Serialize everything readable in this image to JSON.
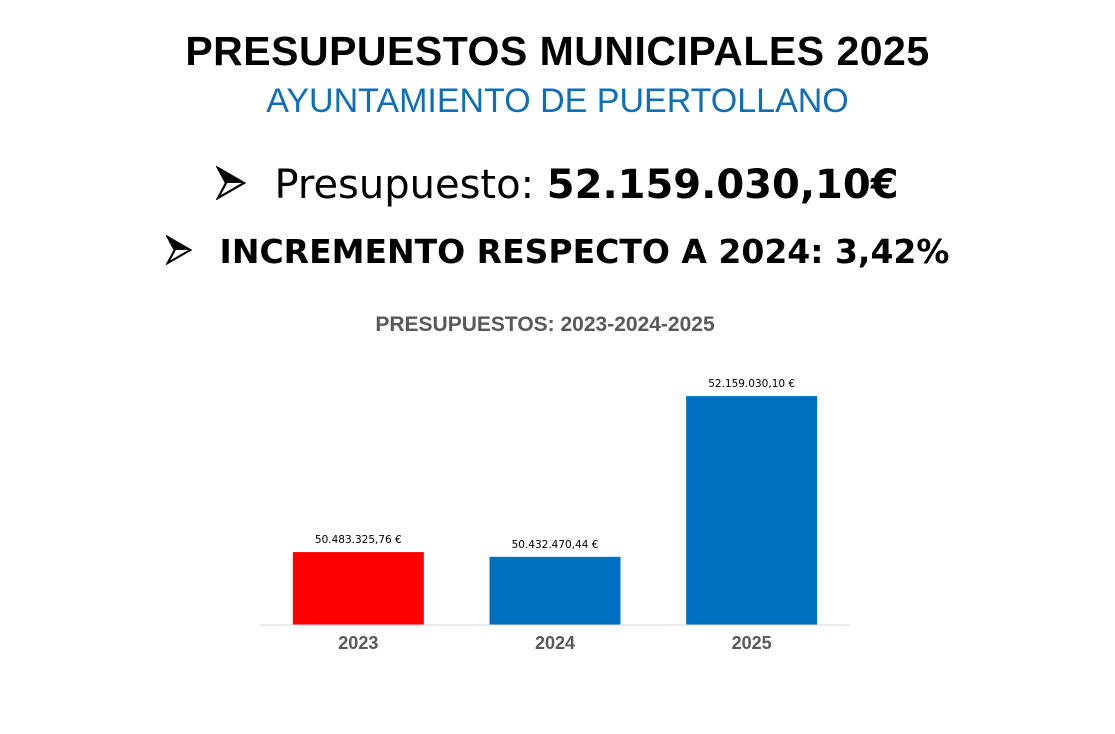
{
  "header": {
    "title": "PRESUPUESTOS MUNICIPALES 2025",
    "subtitle": "AYUNTAMIENTO DE PUERTOLLANO"
  },
  "bullets": [
    {
      "icon": "arrow-bullet-icon",
      "label": "Presupuesto: ",
      "value": "52.159.030,10€"
    },
    {
      "icon": "arrow-bullet-icon",
      "label": "INCREMENTO RESPECTO A 2024: 3,42%"
    }
  ],
  "chart_data": {
    "type": "bar",
    "title": "PRESUPUESTOS: 2023-2024-2025",
    "categories": [
      "2023",
      "2024",
      "2025"
    ],
    "values": [
      50483325.76,
      50432470.44,
      52159030.1
    ],
    "data_labels": [
      "50.483.325,76 €",
      "50.432.470,44 €",
      "52.159.030,10 €"
    ],
    "colors": [
      "#ff0000",
      "#0070c0",
      "#0070c0"
    ],
    "ylim": [
      49700000,
      52300000
    ],
    "grid": false,
    "xlabel": "",
    "ylabel": ""
  },
  "colors": {
    "subtitle": "#0e6fb8",
    "chart_title": "#595959",
    "axis_labels": "#595959",
    "baseline": "#d9d9d9"
  }
}
